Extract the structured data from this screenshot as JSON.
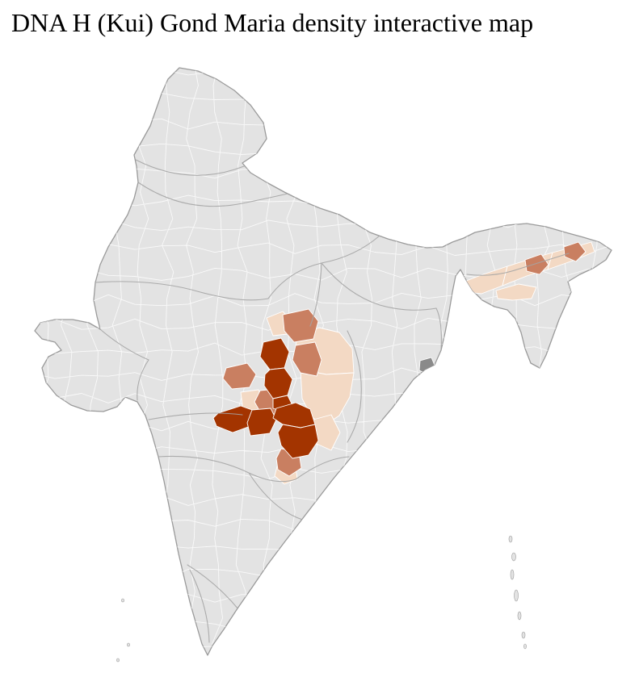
{
  "page": {
    "title": "DNA H (Kui) Gond Maria density interactive map"
  },
  "map": {
    "base_fill": "#e3e3e3",
    "district_border": "#ffffff",
    "state_border": "#a5a5a5",
    "outline": "#9a9a9a",
    "dark_region": "#8a8a8a",
    "density_scale": {
      "high": "#a33400",
      "medium": "#c97f61",
      "low": "#f3d9c4"
    }
  }
}
